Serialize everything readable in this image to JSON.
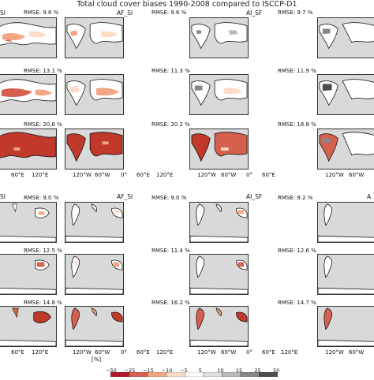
{
  "figure": {
    "title": "Total cloud cover biases 1990-2008 compared to ISCCP-D1",
    "unit_label": "[%]"
  },
  "panels": {
    "top": {
      "col_titles": [
        "SI",
        "AF_SI",
        "AI_SF",
        ""
      ],
      "rmse_rows": [
        [
          "RMSE: 9.6 %",
          "RMSE: 9.6 %",
          "RMSE: 9.7 %"
        ],
        [
          "RMSE: 13.1 %",
          "RMSE: 11.3 %",
          "RMSE: 11.9 %"
        ],
        [
          "RMSE: 20.6 %",
          "RMSE: 20.2 %",
          "RMSE: 18.8 %"
        ]
      ],
      "lon_ticks": {
        "col1": [
          "60°E",
          "120°E"
        ],
        "col2": [
          "120°W",
          "60°W",
          "0°",
          "60°E",
          "120°E"
        ],
        "col3": [
          "120°W",
          "60°W",
          "0°",
          "60°E"
        ],
        "col4": [
          "120°W",
          "60°W"
        ]
      }
    },
    "bottom": {
      "col_titles": [
        "SI",
        "AF_SI",
        "AI_SF",
        "A"
      ],
      "rmse_rows": [
        [
          "RMSE: 9.0 %",
          "RMSE: 9.0 %",
          "RMSE: 9.2 %"
        ],
        [
          "RMSE: 12.5 %",
          "RMSE: 11.4 %",
          "RMSE: 12.6 %"
        ],
        [
          "RMSE: 14.8 %",
          "RMSE: 16.2 %",
          "RMSE: 14.7 %"
        ]
      ],
      "lon_ticks": {
        "col1": [
          "60°E",
          "120°E"
        ],
        "col2": [
          "120°W",
          "60°W",
          "0°",
          "60°E",
          "120°E"
        ],
        "col3": [
          "120°W",
          "60°W",
          "0°",
          "60°E",
          "120°E"
        ],
        "col4": [
          "120°W",
          "60°W"
        ]
      }
    }
  },
  "colorbar": {
    "labels": [
      "−50",
      "−25",
      "−15",
      "−10",
      "−5",
      "5",
      "10",
      "15",
      "25",
      "50"
    ],
    "colors": [
      "#b2182b",
      "#d6604d",
      "#f4a582",
      "#fddbc7",
      "#ffffff",
      "#e0e0e0",
      "#bababa",
      "#878787",
      "#4d4d4d"
    ]
  },
  "colors": {
    "ocean": "#d9d9d9",
    "land_white": "#ffffff",
    "coast": "#111111",
    "bias_red": "#c0392b",
    "bias_light": "#f4a582",
    "bias_gray": "#9a9a9a"
  }
}
